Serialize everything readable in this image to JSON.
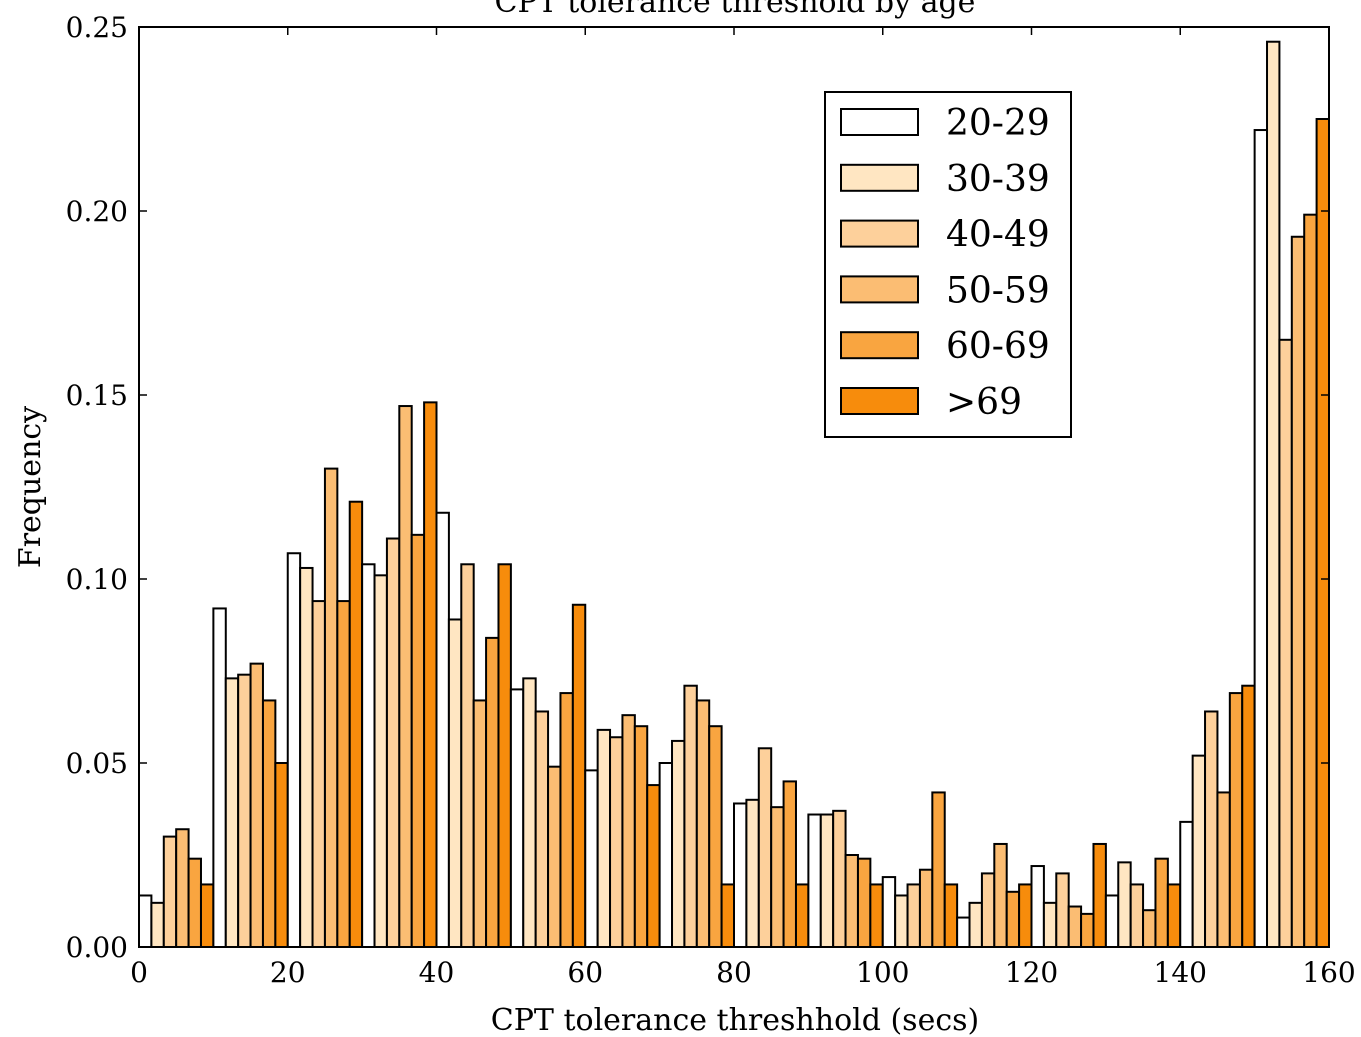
{
  "chart_data": {
    "type": "bar",
    "title": "CPT tolerance threshold by age",
    "xlabel": "CPT tolerance threshhold (secs)",
    "ylabel": "Frequency",
    "xlim": [
      0,
      160
    ],
    "ylim": [
      0,
      0.25
    ],
    "x_ticks": [
      0,
      20,
      40,
      60,
      80,
      100,
      120,
      140,
      160
    ],
    "y_ticks": [
      0.0,
      0.05,
      0.1,
      0.15,
      0.2,
      0.25
    ],
    "x_tick_labels": [
      "0",
      "20",
      "40",
      "60",
      "80",
      "100",
      "120",
      "140",
      "160"
    ],
    "y_tick_labels": [
      "0.00",
      "0.05",
      "0.10",
      "0.15",
      "0.20",
      "0.25"
    ],
    "grid": false,
    "legend_position": "upper right",
    "bin_width": 10,
    "bin_starts": [
      0,
      10,
      20,
      30,
      40,
      50,
      60,
      70,
      80,
      90,
      100,
      110,
      120,
      130,
      140,
      150
    ],
    "series": [
      {
        "name": "20-29",
        "color": "#ffffff",
        "values": [
          0.014,
          0.092,
          0.107,
          0.104,
          0.118,
          0.07,
          0.048,
          0.05,
          0.039,
          0.036,
          0.019,
          0.008,
          0.022,
          0.014,
          0.034,
          0.222
        ]
      },
      {
        "name": "30-39",
        "color": "#ffe6c2",
        "values": [
          0.012,
          0.073,
          0.103,
          0.101,
          0.089,
          0.073,
          0.059,
          0.056,
          0.04,
          0.036,
          0.014,
          0.012,
          0.012,
          0.023,
          0.052,
          0.246
        ]
      },
      {
        "name": "40-49",
        "color": "#fdd09b",
        "values": [
          0.03,
          0.074,
          0.094,
          0.111,
          0.104,
          0.064,
          0.057,
          0.071,
          0.054,
          0.037,
          0.017,
          0.02,
          0.02,
          0.017,
          0.064,
          0.165
        ]
      },
      {
        "name": "50-59",
        "color": "#fbbd73",
        "values": [
          0.032,
          0.077,
          0.13,
          0.147,
          0.067,
          0.049,
          0.063,
          0.067,
          0.038,
          0.025,
          0.021,
          0.028,
          0.011,
          0.01,
          0.042,
          0.193
        ]
      },
      {
        "name": "60-69",
        "color": "#f9a540",
        "values": [
          0.024,
          0.067,
          0.094,
          0.112,
          0.084,
          0.069,
          0.06,
          0.06,
          0.045,
          0.024,
          0.042,
          0.015,
          0.009,
          0.024,
          0.069,
          0.199
        ]
      },
      {
        "name": ">69",
        "color": "#f78c0c",
        "values": [
          0.017,
          0.05,
          0.121,
          0.148,
          0.104,
          0.093,
          0.044,
          0.017,
          0.017,
          0.017,
          0.017,
          0.017,
          0.028,
          0.017,
          0.071,
          0.225
        ]
      }
    ]
  }
}
